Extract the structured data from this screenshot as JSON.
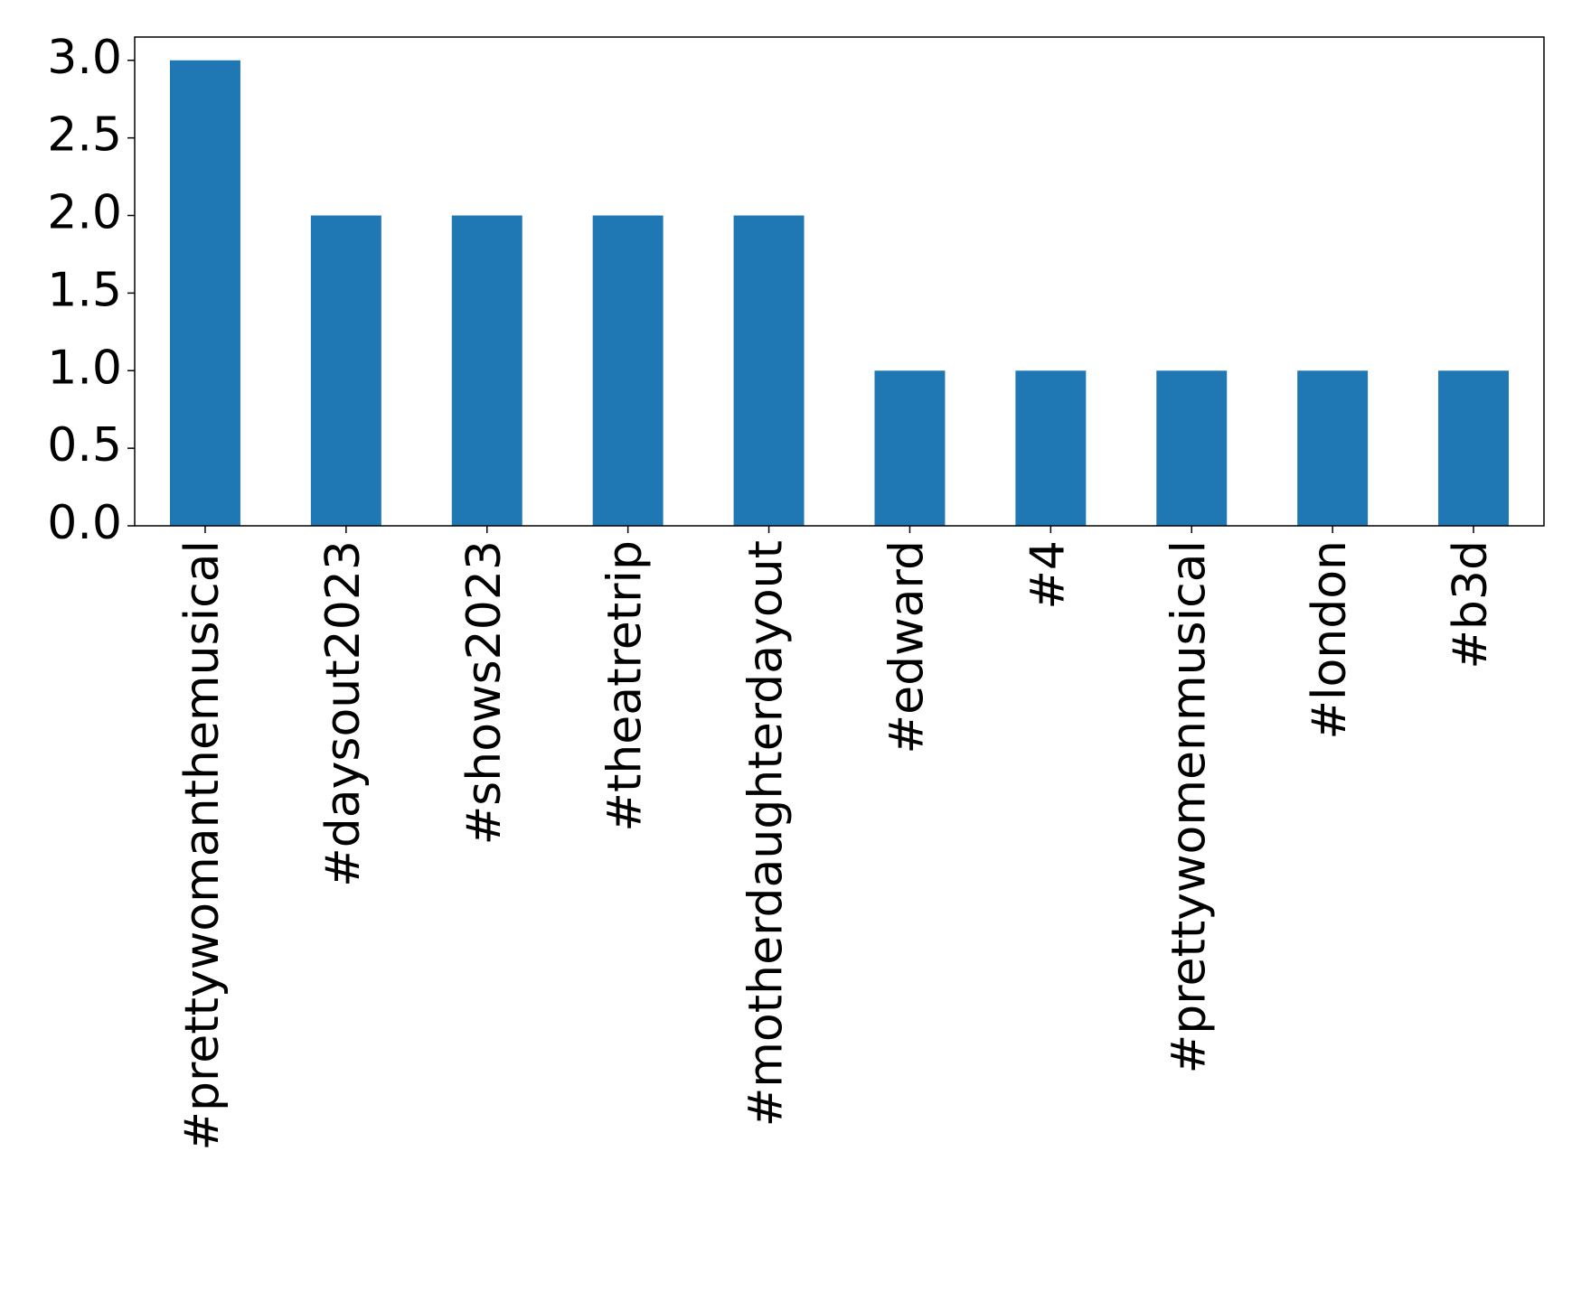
{
  "chart_data": {
    "type": "bar",
    "categories": [
      "#prettywomanthemusical",
      "#daysout2023",
      "#shows2023",
      "#theatretrip",
      "#motherdaughterdayout",
      "#edward",
      "#4",
      "#prettywomenmusical",
      "#london",
      "#b3d"
    ],
    "values": [
      3,
      2,
      2,
      2,
      2,
      1,
      1,
      1,
      1,
      1
    ],
    "color": "#1f77b4",
    "ylim": [
      0,
      3.15
    ],
    "yticks": [
      {
        "value": 0,
        "label": "0.0"
      },
      {
        "value": 0.5,
        "label": "0.5"
      },
      {
        "value": 1,
        "label": "1.0"
      },
      {
        "value": 1.5,
        "label": "1.5"
      },
      {
        "value": 2,
        "label": "2.0"
      },
      {
        "value": 2.5,
        "label": "2.5"
      },
      {
        "value": 3,
        "label": "3.0"
      }
    ],
    "grid": false
  }
}
